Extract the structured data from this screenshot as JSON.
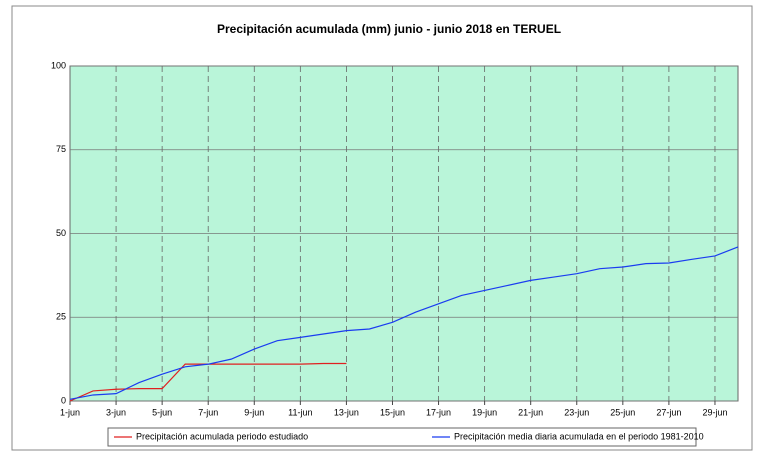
{
  "chart_data": {
    "type": "line",
    "title": "Precipitación acumulada (mm) junio - junio 2018 en TERUEL",
    "categories": [
      "1-jun",
      null,
      "3-jun",
      null,
      "5-jun",
      null,
      "7-jun",
      null,
      "9-jun",
      null,
      "11-jun",
      null,
      "13-jun",
      null,
      "15-jun",
      null,
      "17-jun",
      null,
      "19-jun",
      null,
      "21-jun",
      null,
      "23-jun",
      null,
      "25-jun",
      null,
      "27-jun",
      null,
      "29-jun",
      null
    ],
    "series": [
      {
        "name": "Precipitación acumulada periodo estudiado",
        "color": "#e02020",
        "values": [
          0,
          3,
          3.5,
          3.7,
          3.7,
          11,
          11,
          11,
          11,
          11,
          11,
          11.2,
          11.2,
          null,
          null,
          null,
          null,
          null,
          null,
          null,
          null,
          null,
          null,
          null,
          null,
          null,
          null,
          null,
          null,
          null
        ]
      },
      {
        "name": "Precipitación media diaria acumulada en el periodo 1981-2010",
        "color": "#1a3cf0",
        "values": [
          0.5,
          1.8,
          2.2,
          5.5,
          8,
          10.2,
          11,
          12.5,
          15.5,
          18,
          19,
          20,
          21,
          21.5,
          23.5,
          26.5,
          29,
          31.5,
          33,
          34.5,
          36,
          37,
          38,
          39.5,
          40,
          41,
          41.2,
          42.3,
          43.3,
          46
        ]
      }
    ],
    "ylim": [
      0,
      100
    ],
    "yticks": [
      0,
      25,
      50,
      75,
      100
    ],
    "grid": true,
    "legend": "bottom"
  }
}
